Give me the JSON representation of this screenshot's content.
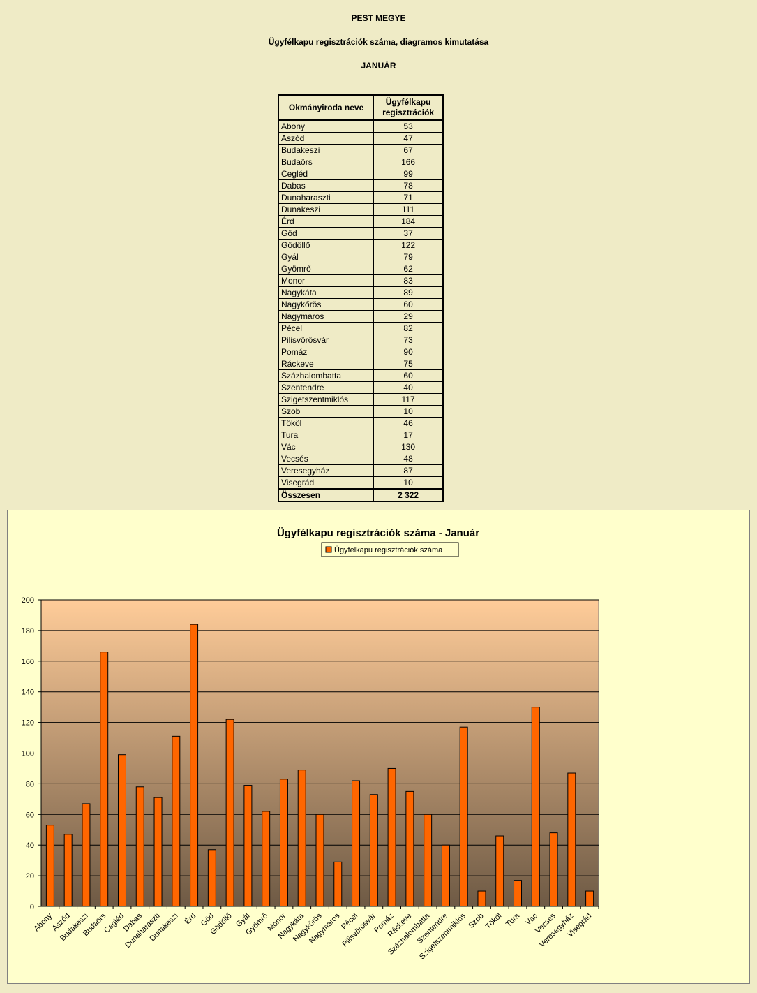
{
  "header": {
    "county": "PEST MEGYE",
    "subtitle": "Ügyfélkapu regisztrációk száma, diagramos kimutatása",
    "month": "JANUÁR"
  },
  "table": {
    "col1": "Okmányiroda neve",
    "col2_line1": "Ügyfélkapu",
    "col2_line2": "regisztrációk",
    "rows": [
      {
        "name": "Abony",
        "value": "53"
      },
      {
        "name": "Aszód",
        "value": "47"
      },
      {
        "name": "Budakeszi",
        "value": "67"
      },
      {
        "name": "Budaörs",
        "value": "166"
      },
      {
        "name": "Cegléd",
        "value": "99"
      },
      {
        "name": "Dabas",
        "value": "78"
      },
      {
        "name": "Dunaharaszti",
        "value": "71"
      },
      {
        "name": "Dunakeszi",
        "value": "111"
      },
      {
        "name": "Érd",
        "value": "184"
      },
      {
        "name": "Göd",
        "value": "37"
      },
      {
        "name": "Gödöllő",
        "value": "122"
      },
      {
        "name": "Gyál",
        "value": "79"
      },
      {
        "name": "Gyömrő",
        "value": "62"
      },
      {
        "name": "Monor",
        "value": "83"
      },
      {
        "name": "Nagykáta",
        "value": "89"
      },
      {
        "name": "Nagykőrös",
        "value": "60"
      },
      {
        "name": "Nagymaros",
        "value": "29"
      },
      {
        "name": "Pécel",
        "value": "82"
      },
      {
        "name": "Pilisvörösvár",
        "value": "73"
      },
      {
        "name": "Pomáz",
        "value": "90"
      },
      {
        "name": "Ráckeve",
        "value": "75"
      },
      {
        "name": "Százhalombatta",
        "value": "60"
      },
      {
        "name": "Szentendre",
        "value": "40"
      },
      {
        "name": "Szigetszentmiklós",
        "value": "117"
      },
      {
        "name": "Szob",
        "value": "10"
      },
      {
        "name": "Tököl",
        "value": "46"
      },
      {
        "name": "Tura",
        "value": "17"
      },
      {
        "name": "Vác",
        "value": "130"
      },
      {
        "name": "Vecsés",
        "value": "48"
      },
      {
        "name": "Veresegyház",
        "value": "87"
      },
      {
        "name": "Visegrád",
        "value": "10"
      }
    ],
    "total_label": "Összesen",
    "total_value": "2 322"
  },
  "chart_data": {
    "type": "bar",
    "title": "Ügyfélkapu regisztrációk száma - Január",
    "categories": [
      "Abony",
      "Aszód",
      "Budakeszi",
      "Budaörs",
      "Cegléd",
      "Dabas",
      "Dunaharaszti",
      "Dunakeszi",
      "Érd",
      "Göd",
      "Gödöllő",
      "Gyál",
      "Gyömrő",
      "Monor",
      "Nagykáta",
      "Nagykőrös",
      "Nagymaros",
      "Pécel",
      "Pilisvörösvár",
      "Pomáz",
      "Ráckeve",
      "Százhalombatta",
      "Szentendre",
      "Szigetszentmiklós",
      "Szob",
      "Tököl",
      "Tura",
      "Vác",
      "Vecsés",
      "Veresegyház",
      "Visegrád"
    ],
    "series": [
      {
        "name": "Ügyfélkapu regisztrációk száma",
        "values": [
          53,
          47,
          67,
          166,
          99,
          78,
          71,
          111,
          184,
          37,
          122,
          79,
          62,
          83,
          89,
          60,
          29,
          82,
          73,
          90,
          75,
          60,
          40,
          117,
          10,
          46,
          17,
          130,
          48,
          87,
          10
        ]
      }
    ],
    "ylim": [
      0,
      200
    ],
    "yticks": [
      0,
      20,
      40,
      60,
      80,
      100,
      120,
      140,
      160,
      180,
      200
    ],
    "grid": true,
    "legend": "top-center",
    "colors": {
      "bar": "#ff6600",
      "bar_outline": "#000000",
      "plot_top": "#ffcc99",
      "plot_bottom": "#6e5a45",
      "chart_bg": "#ffffcc",
      "page_bg": "#efebc6"
    }
  }
}
